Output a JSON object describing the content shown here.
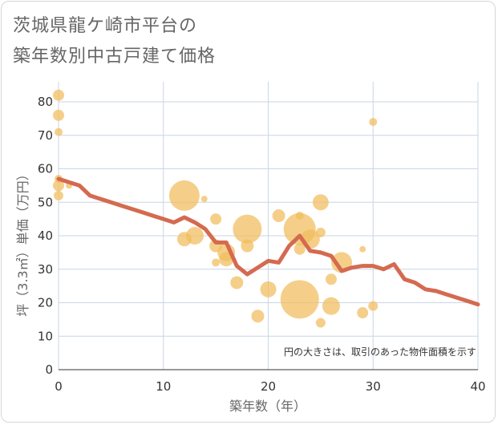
{
  "title_line1": "茨城県龍ケ崎市平台の",
  "title_line2": "築年数別中古戸建て価格",
  "chart_data": {
    "type": "scatter",
    "xlabel": "築年数（年）",
    "ylabel": "坪（3.3㎡）単価（万円）",
    "xlim": [
      0,
      40
    ],
    "ylim": [
      0,
      86
    ],
    "xticks": [
      0,
      10,
      20,
      30,
      40
    ],
    "yticks": [
      0,
      10,
      20,
      30,
      40,
      50,
      60,
      70,
      80
    ],
    "annotation": "円の大きさは、取引のあった物件面積を示す",
    "colors": {
      "bubble": "#f1bd5c",
      "line": "#d46a50",
      "grid": "#c9d6e6"
    },
    "bubbles": [
      {
        "x": 0,
        "y": 82,
        "r": 7
      },
      {
        "x": 0,
        "y": 76,
        "r": 7
      },
      {
        "x": 0,
        "y": 71,
        "r": 5
      },
      {
        "x": 0,
        "y": 57,
        "r": 5
      },
      {
        "x": 0,
        "y": 55,
        "r": 7
      },
      {
        "x": 0,
        "y": 52,
        "r": 6
      },
      {
        "x": 1,
        "y": 55,
        "r": 4
      },
      {
        "x": 12,
        "y": 52,
        "r": 19
      },
      {
        "x": 13.9,
        "y": 51,
        "r": 4
      },
      {
        "x": 12,
        "y": 39,
        "r": 9
      },
      {
        "x": 13,
        "y": 40,
        "r": 11
      },
      {
        "x": 15,
        "y": 45,
        "r": 7
      },
      {
        "x": 15,
        "y": 37,
        "r": 8
      },
      {
        "x": 15,
        "y": 32,
        "r": 5
      },
      {
        "x": 16,
        "y": 35,
        "r": 11
      },
      {
        "x": 16,
        "y": 33,
        "r": 9
      },
      {
        "x": 17,
        "y": 26,
        "r": 8
      },
      {
        "x": 18,
        "y": 42,
        "r": 18
      },
      {
        "x": 18,
        "y": 37,
        "r": 8
      },
      {
        "x": 19,
        "y": 16,
        "r": 8
      },
      {
        "x": 20,
        "y": 24,
        "r": 10
      },
      {
        "x": 21,
        "y": 46,
        "r": 8
      },
      {
        "x": 23,
        "y": 46,
        "r": 5
      },
      {
        "x": 23,
        "y": 42,
        "r": 20
      },
      {
        "x": 23,
        "y": 36,
        "r": 7
      },
      {
        "x": 23,
        "y": 21,
        "r": 24
      },
      {
        "x": 24,
        "y": 39,
        "r": 12
      },
      {
        "x": 25,
        "y": 50,
        "r": 10
      },
      {
        "x": 25,
        "y": 41,
        "r": 6
      },
      {
        "x": 25,
        "y": 14,
        "r": 6
      },
      {
        "x": 26,
        "y": 27,
        "r": 7
      },
      {
        "x": 26,
        "y": 19,
        "r": 11
      },
      {
        "x": 27,
        "y": 32,
        "r": 13
      },
      {
        "x": 29,
        "y": 36,
        "r": 4
      },
      {
        "x": 29,
        "y": 17,
        "r": 7
      },
      {
        "x": 30,
        "y": 74,
        "r": 5
      },
      {
        "x": 30,
        "y": 19,
        "r": 6
      }
    ],
    "trend": {
      "x": [
        0,
        1,
        2,
        3,
        4,
        5,
        6,
        7,
        8,
        9,
        10,
        11,
        12,
        13,
        14,
        15,
        16,
        17,
        18,
        19,
        20,
        21,
        22,
        23,
        24,
        25,
        26,
        27,
        28,
        29,
        30,
        31,
        32,
        33,
        34,
        35,
        36,
        37,
        38,
        39,
        40
      ],
      "y": [
        57,
        56,
        55,
        52,
        51,
        50,
        49,
        48,
        47,
        46,
        45,
        44,
        45.5,
        44,
        42,
        38,
        38,
        31,
        28.5,
        30.5,
        32.5,
        32,
        37,
        40,
        35.5,
        35,
        34,
        29.5,
        30.5,
        31,
        31,
        30,
        31.5,
        27,
        26,
        24,
        23.5,
        22.5,
        21.5,
        20.5,
        19.5
      ]
    }
  }
}
